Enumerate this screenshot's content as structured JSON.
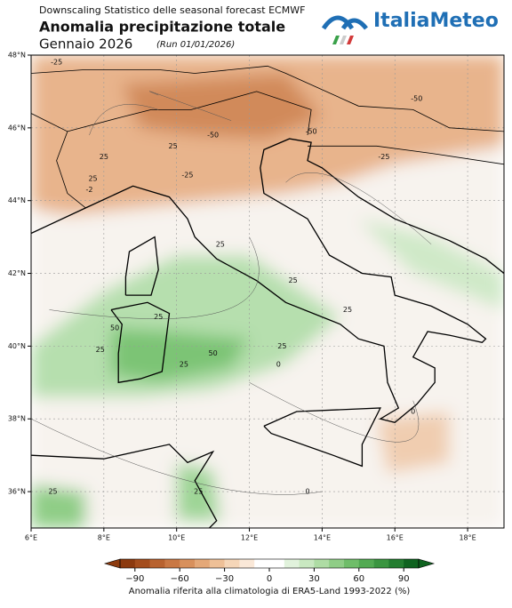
{
  "header": {
    "subtitle": "Downscaling Statistico delle seasonal forecast ECMWF",
    "title": "Anomalia precipitazione totale",
    "period": "Gennaio 2026",
    "run": "(Run 01/01/2026)",
    "logo": "ItaliaMeteo"
  },
  "map": {
    "lon_lim": [
      6,
      19
    ],
    "lat_lim": [
      35,
      48
    ],
    "lon_ticks": [
      {
        "value": 6,
        "label": "6°E"
      },
      {
        "value": 8,
        "label": "8°E"
      },
      {
        "value": 10,
        "label": "10°E"
      },
      {
        "value": 12,
        "label": "12°E"
      },
      {
        "value": 14,
        "label": "14°E"
      },
      {
        "value": 16,
        "label": "16°E"
      },
      {
        "value": 18,
        "label": "18°E"
      }
    ],
    "lat_ticks": [
      {
        "value": 36,
        "label": "36°N"
      },
      {
        "value": 38,
        "label": "38°N"
      },
      {
        "value": 40,
        "label": "40°N"
      },
      {
        "value": 42,
        "label": "42°N"
      },
      {
        "value": 44,
        "label": "44°N"
      },
      {
        "value": 46,
        "label": "46°N"
      },
      {
        "value": 48,
        "label": "48°N"
      }
    ],
    "contour_labels": [
      "-25",
      "-50",
      "-50",
      "-50",
      "-25",
      "25",
      "25",
      "-25",
      "-2",
      "0",
      "0",
      "25",
      "25",
      "25",
      "25",
      "50",
      "25",
      "25",
      "25",
      "25",
      "50",
      "25",
      "0",
      "25"
    ]
  },
  "colorbar": {
    "lim": [
      -100,
      100
    ],
    "ticks": [
      {
        "value": -90,
        "label": "−90"
      },
      {
        "value": -60,
        "label": "−60"
      },
      {
        "value": -30,
        "label": "−30"
      },
      0,
      30,
      60,
      90
    ],
    "colors": [
      "#8c3a0f",
      "#a44d1d",
      "#b8622f",
      "#c97844",
      "#d8905c",
      "#e4a878",
      "#eec097",
      "#f5d6b8",
      "#fae8d8",
      "#ffffff",
      "#ffffff",
      "#e1f2dc",
      "#c9e8c1",
      "#aedca4",
      "#8fcd86",
      "#6fbd69",
      "#52aa52",
      "#3a9540",
      "#237d30",
      "#0f6320"
    ],
    "label": "Anomalia riferita alla climatologia di ERA5-Land 1993-2022 (%)"
  }
}
